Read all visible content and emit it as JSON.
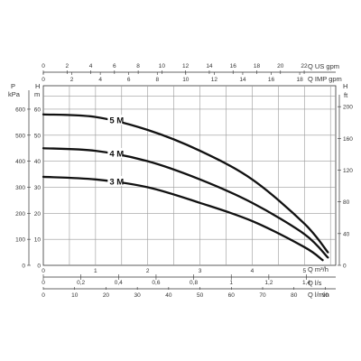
{
  "colors": {
    "curve": "#111111",
    "grid": "#9a9a9a",
    "axis": "#333333",
    "background": "#ffffff"
  },
  "chart_data": {
    "type": "line",
    "title": "",
    "grid": true,
    "x_main": {
      "label": "Q m³/h",
      "range": [
        0,
        5.6
      ],
      "ticks": [
        0,
        1,
        2,
        3,
        4,
        5
      ]
    },
    "x_top_us": {
      "label": "Q US gpm",
      "range": [
        0,
        24.66
      ],
      "ticks": [
        0,
        2,
        4,
        6,
        8,
        10,
        12,
        14,
        16,
        18,
        20,
        22
      ]
    },
    "x_top_imp": {
      "label": "Q IMP gpm",
      "range": [
        0,
        20.53
      ],
      "ticks": [
        0,
        2,
        4,
        6,
        8,
        10,
        12,
        14,
        16,
        18
      ]
    },
    "x_bottom_ls": {
      "label": "Q l/s",
      "range": [
        0,
        1.556
      ],
      "ticks": [
        "0",
        "0,2",
        "0,4",
        "0,6",
        "0,8",
        "1",
        "1,2",
        "1,4"
      ]
    },
    "x_bottom_lmin": {
      "label": "Q l/min",
      "range": [
        0,
        93.33
      ],
      "ticks": [
        0,
        10,
        20,
        30,
        40,
        50,
        60,
        70,
        80,
        90
      ]
    },
    "y_kpa": {
      "label_p": "P",
      "label_unit": "kPa",
      "range": [
        0,
        600
      ],
      "ticks": [
        0,
        100,
        200,
        300,
        400,
        500,
        600
      ]
    },
    "y_m": {
      "label_h": "H",
      "label_unit": "m",
      "range": [
        0,
        60
      ],
      "ticks": [
        0,
        10,
        20,
        30,
        40,
        50,
        60
      ]
    },
    "y_ft": {
      "label_h": "H",
      "label_unit": "ft",
      "range": [
        0,
        196.9
      ],
      "ticks": [
        0,
        40,
        80,
        120,
        160,
        200
      ],
      "tick_labels": [
        "0",
        "40",
        "80",
        "120",
        "160",
        "200"
      ]
    },
    "series": [
      {
        "name": "5 M",
        "x": [
          0,
          1,
          2,
          3,
          4,
          5,
          5.45
        ],
        "y": [
          58,
          57,
          52,
          44,
          33,
          16,
          5
        ]
      },
      {
        "name": "4 M",
        "x": [
          0,
          1,
          2,
          3,
          4,
          5,
          5.45
        ],
        "y": [
          45,
          44,
          40,
          33,
          24,
          12,
          3
        ]
      },
      {
        "name": "3 M",
        "x": [
          0,
          1,
          2,
          3,
          4,
          5,
          5.35
        ],
        "y": [
          34,
          33,
          30,
          24,
          17,
          7,
          2
        ]
      }
    ]
  }
}
